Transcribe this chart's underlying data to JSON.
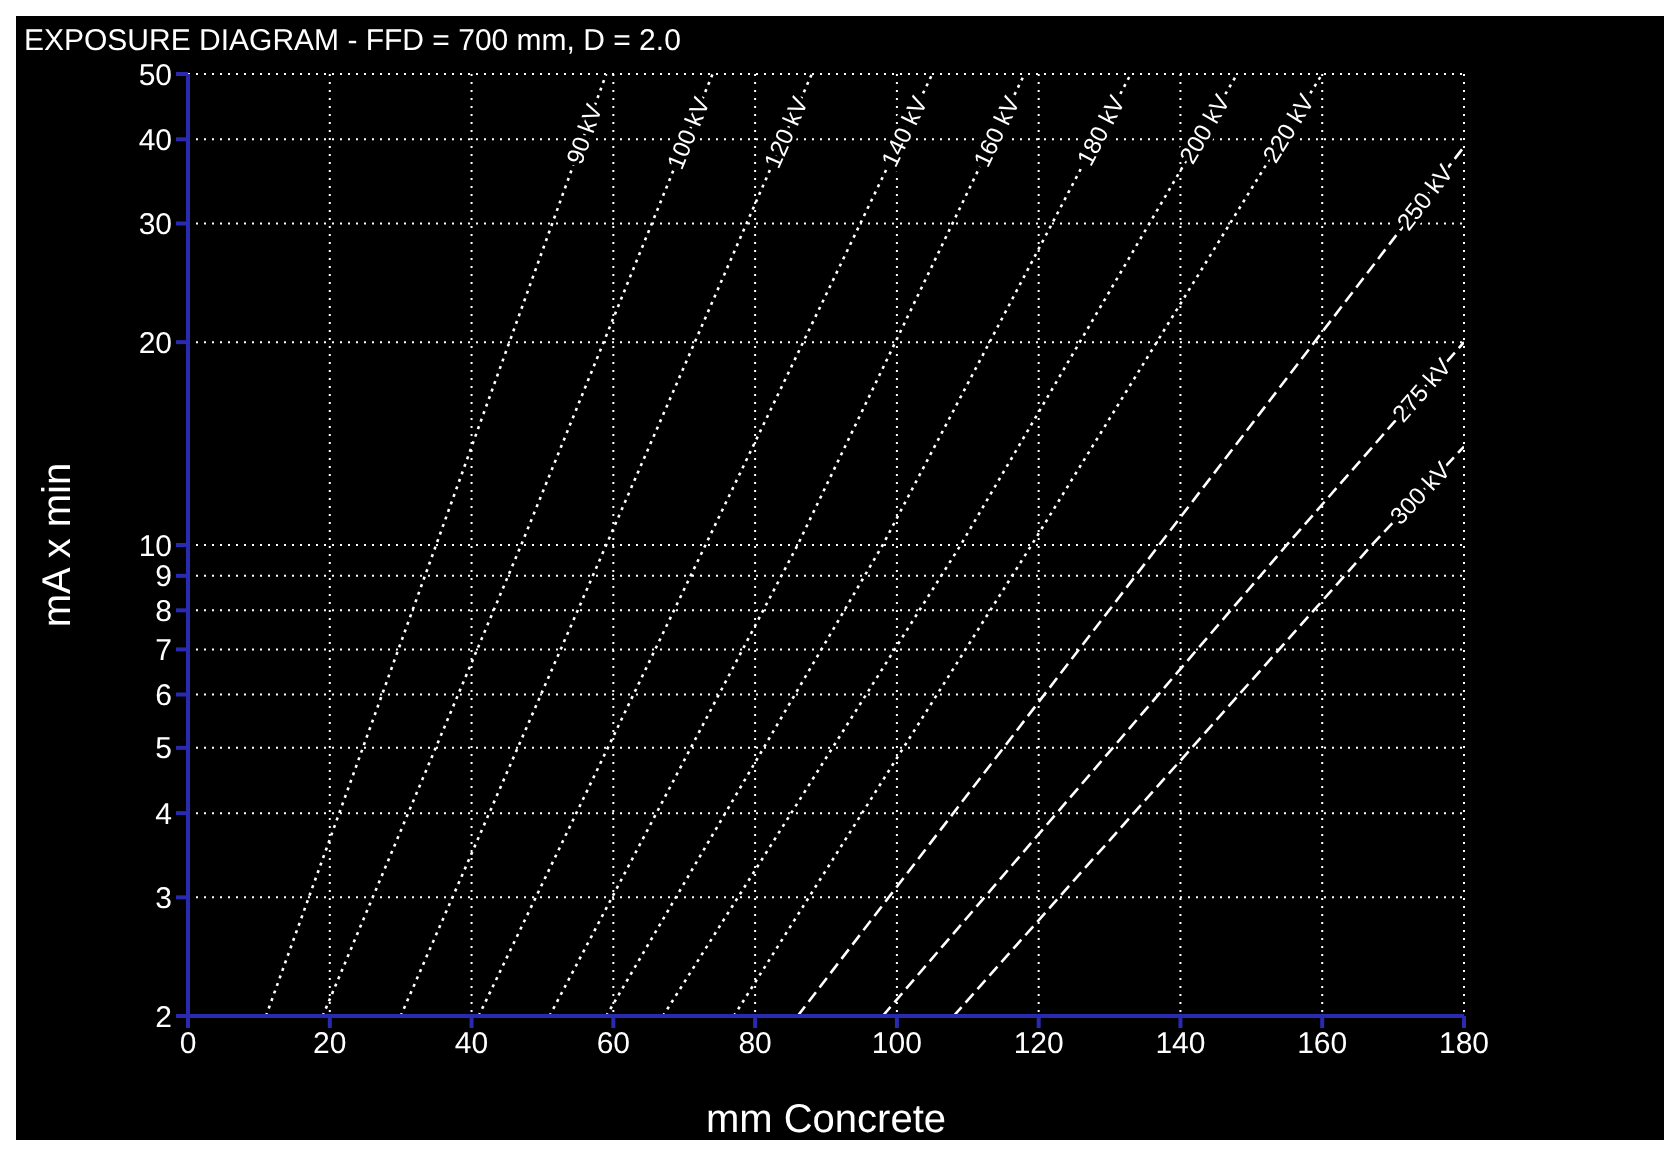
{
  "chart_data": {
    "type": "line",
    "title": "EXPOSURE DIAGRAM - FFD = 700 mm, D = 2.0",
    "xlabel": "mm Concrete",
    "ylabel": "mA x min",
    "xlim": [
      0,
      180
    ],
    "xticks": [
      0,
      20,
      40,
      60,
      80,
      100,
      120,
      140,
      160,
      180
    ],
    "ylim": [
      2,
      50
    ],
    "yticks": [
      2,
      3,
      4,
      5,
      6,
      7,
      8,
      9,
      10,
      20,
      30,
      40,
      50
    ],
    "log": "y",
    "grid": true,
    "marker": "none",
    "line_style": "dotted",
    "legend": false,
    "series": [
      {
        "name": "90 kV",
        "color": "#ffffff",
        "x": [
          11,
          35,
          59
        ],
        "values": [
          2,
          10,
          50
        ]
      },
      {
        "name": "100 kV",
        "color": "#ffffff",
        "x": [
          19,
          47,
          74
        ],
        "values": [
          2,
          10,
          50
        ]
      },
      {
        "name": "120 kV",
        "color": "#ffffff",
        "x": [
          30,
          59,
          88
        ],
        "values": [
          2,
          10,
          50
        ]
      },
      {
        "name": "140 kV",
        "color": "#ffffff",
        "x": [
          41,
          73,
          105
        ],
        "values": [
          2,
          10,
          50
        ]
      },
      {
        "name": "160 kV",
        "color": "#ffffff",
        "x": [
          51,
          86,
          118
        ],
        "values": [
          2,
          10,
          50
        ]
      },
      {
        "name": "180 kV",
        "color": "#ffffff",
        "x": [
          59,
          98,
          133
        ],
        "values": [
          2,
          10,
          50
        ]
      },
      {
        "name": "200 kV",
        "color": "#ffffff",
        "x": [
          67,
          109,
          148
        ],
        "values": [
          2,
          10,
          50
        ]
      },
      {
        "name": "220 kV",
        "color": "#ffffff",
        "x": [
          77,
          119,
          160
        ],
        "values": [
          2,
          10,
          50
        ]
      },
      {
        "name": "250 kV",
        "color": "#ffffff",
        "x": [
          86,
          137,
          180
        ],
        "values": [
          2,
          10,
          39
        ],
        "line_style": "dashed"
      },
      {
        "name": "275 kV",
        "color": "#ffffff",
        "x": [
          98,
          155,
          180
        ],
        "values": [
          2,
          10,
          20
        ],
        "line_style": "dashed"
      },
      {
        "name": "300 kV",
        "color": "#ffffff",
        "x": [
          108,
          167,
          180
        ],
        "values": [
          2,
          10,
          14
        ],
        "line_style": "dashed"
      }
    ]
  }
}
